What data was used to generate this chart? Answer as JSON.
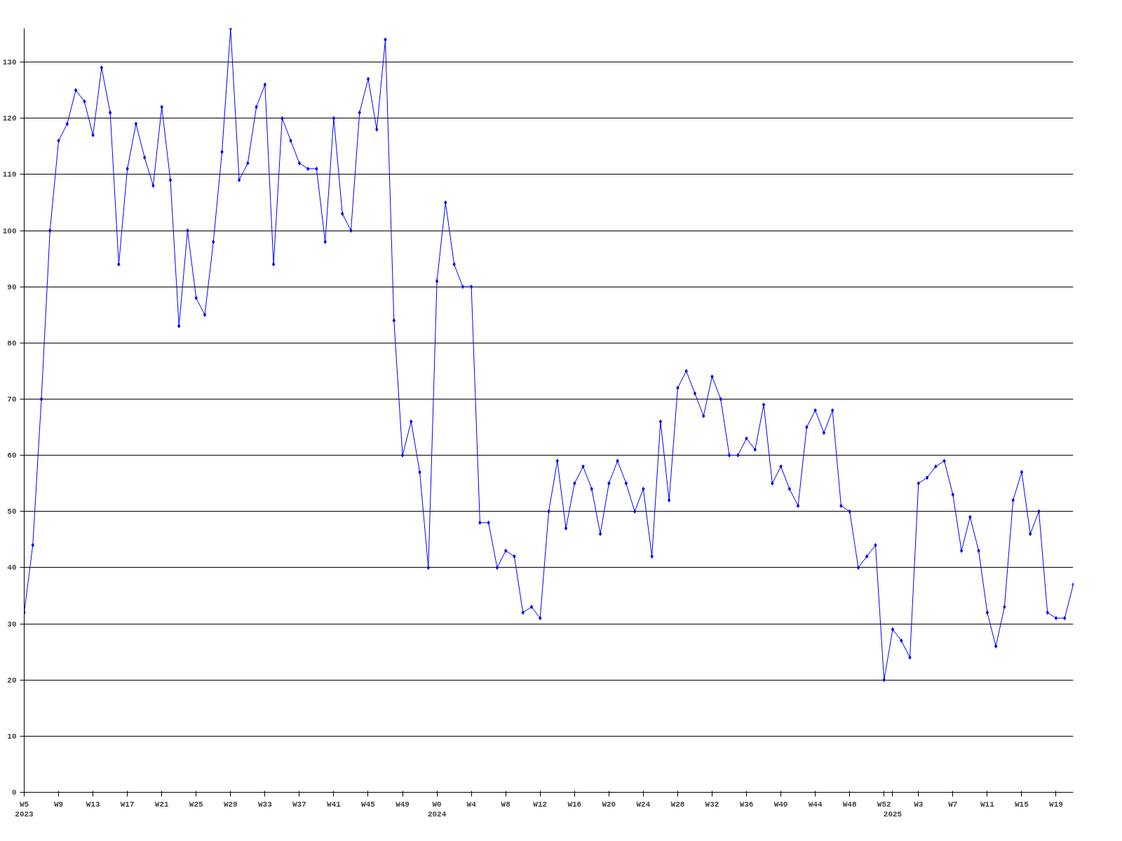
{
  "chart_data": {
    "type": "line",
    "categories": [
      "W5\n2023",
      null,
      null,
      null,
      "W9",
      null,
      null,
      null,
      "W13",
      null,
      null,
      null,
      "W17",
      null,
      null,
      null,
      "W21",
      null,
      null,
      null,
      "W25",
      null,
      null,
      null,
      "W29",
      null,
      null,
      null,
      "W33",
      null,
      null,
      null,
      "W37",
      null,
      null,
      null,
      "W41",
      null,
      null,
      null,
      "W45",
      null,
      null,
      null,
      "W49",
      null,
      null,
      null,
      "W0\n2024",
      null,
      null,
      null,
      "W4",
      null,
      null,
      null,
      "W8",
      null,
      null,
      null,
      "W12",
      null,
      null,
      null,
      "W16",
      null,
      null,
      null,
      "W20",
      null,
      null,
      null,
      "W24",
      null,
      null,
      null,
      "W28",
      null,
      null,
      null,
      "W32",
      null,
      null,
      null,
      "W36",
      null,
      null,
      null,
      "W40",
      null,
      null,
      null,
      "W44",
      null,
      null,
      null,
      "W48",
      null,
      null,
      null,
      "W52",
      "\n2025",
      null,
      null,
      "W3",
      null,
      null,
      null,
      "W7",
      null,
      null,
      null,
      "W11",
      null,
      null,
      null,
      "W15",
      null,
      null,
      null,
      "W19",
      null,
      null
    ],
    "series": [
      {
        "color": "#0000ff",
        "values": [
          32,
          44,
          70,
          100,
          116,
          119,
          125,
          123,
          117,
          129,
          121,
          94,
          111,
          119,
          113,
          108,
          122,
          109,
          83,
          100,
          88,
          85,
          98,
          114,
          136,
          109,
          112,
          122,
          126,
          94,
          120,
          116,
          112,
          111,
          111,
          98,
          120,
          103,
          100,
          121,
          127,
          118,
          134,
          84,
          60,
          66,
          57,
          40,
          91,
          105,
          94,
          90,
          90,
          48,
          48,
          40,
          43,
          42,
          32,
          33,
          31,
          50,
          59,
          47,
          55,
          58,
          54,
          46,
          55,
          59,
          55,
          50,
          54,
          42,
          66,
          52,
          72,
          75,
          71,
          67,
          74,
          70,
          60,
          60,
          63,
          61,
          69,
          55,
          58,
          54,
          51,
          65,
          68,
          64,
          68,
          51,
          50,
          40,
          42,
          44,
          20,
          29,
          27,
          24,
          55,
          56,
          58,
          59,
          53,
          43,
          49,
          43,
          32,
          26,
          33,
          52,
          57,
          46,
          50,
          32,
          31,
          31,
          37
        ]
      }
    ],
    "ylim": [
      0,
      136
    ],
    "yticks": [
      0,
      10,
      20,
      30,
      40,
      50,
      60,
      70,
      80,
      90,
      100,
      110,
      120,
      130
    ],
    "grid": "y",
    "marker": "diamond",
    "line_style": "solid"
  }
}
